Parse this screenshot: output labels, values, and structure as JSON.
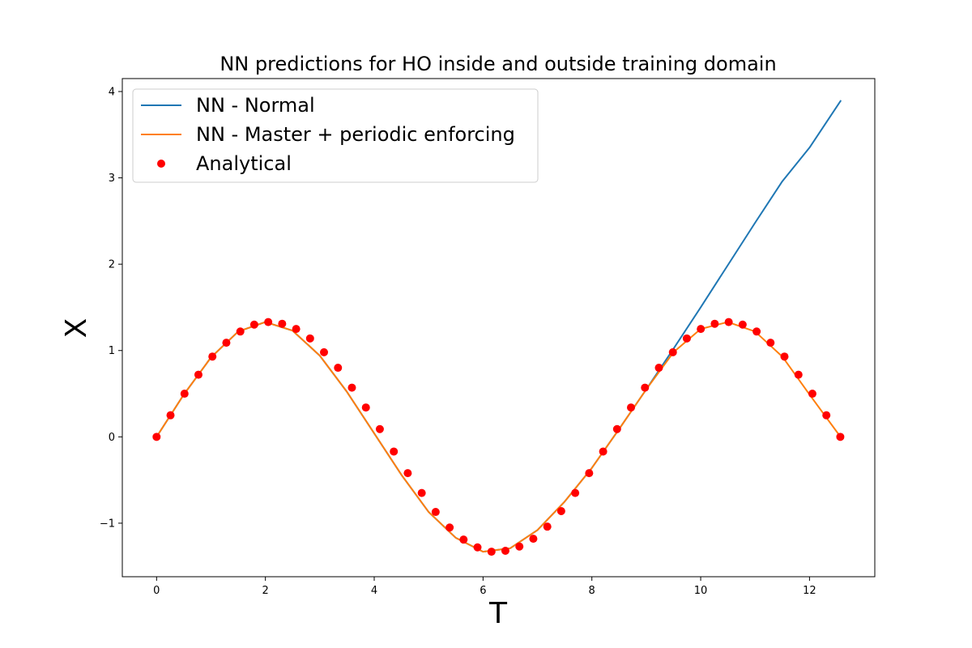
{
  "chart_data": {
    "type": "line",
    "title": "NN predictions for HO inside and outside training domain",
    "xlabel": "T",
    "ylabel": "X",
    "xlim": [
      -0.63,
      13.2
    ],
    "ylim": [
      -1.62,
      4.15
    ],
    "xticks": [
      0,
      2,
      4,
      6,
      8,
      10,
      12
    ],
    "yticks": [
      -1,
      0,
      1,
      2,
      3,
      4
    ],
    "ytick_labels": [
      "−1",
      "0",
      "1",
      "2",
      "3",
      "4"
    ],
    "grid": false,
    "legend_position": "top-left",
    "series": [
      {
        "name": "NN - Normal",
        "style": "line",
        "color": "#1f77b4",
        "x": [
          0,
          0.5,
          1,
          1.5,
          2,
          2.5,
          3,
          3.5,
          4,
          4.5,
          5,
          5.5,
          6,
          6.5,
          7,
          7.5,
          8,
          8.5,
          9,
          9.5,
          10,
          10.5,
          11,
          11.5,
          12,
          12.57
        ],
        "y": [
          0,
          0.49,
          0.92,
          1.22,
          1.33,
          1.23,
          0.94,
          0.52,
          0.04,
          -0.44,
          -0.87,
          -1.17,
          -1.33,
          -1.29,
          -1.08,
          -0.75,
          -0.36,
          0.09,
          0.55,
          1.02,
          1.5,
          1.99,
          2.48,
          2.96,
          3.35,
          3.89
        ]
      },
      {
        "name": "NN - Master + periodic enforcing",
        "style": "line",
        "color": "#ff7f0e",
        "x": [
          0,
          0.5,
          1,
          1.5,
          2,
          2.5,
          3,
          3.5,
          4,
          4.5,
          5,
          5.5,
          6,
          6.5,
          7,
          7.5,
          8,
          8.5,
          9,
          9.5,
          10,
          10.5,
          11,
          11.5,
          12,
          12.57
        ],
        "y": [
          0,
          0.49,
          0.92,
          1.22,
          1.33,
          1.23,
          0.94,
          0.52,
          0.04,
          -0.44,
          -0.87,
          -1.17,
          -1.33,
          -1.29,
          -1.08,
          -0.75,
          -0.36,
          0.09,
          0.55,
          0.98,
          1.25,
          1.33,
          1.22,
          0.93,
          0.49,
          0
        ]
      },
      {
        "name": "Analytical",
        "style": "scatter",
        "color": "#ff0000",
        "x": [
          0,
          0.256,
          0.513,
          0.769,
          1.026,
          1.282,
          1.539,
          1.795,
          2.052,
          2.308,
          2.565,
          2.821,
          3.077,
          3.334,
          3.59,
          3.847,
          4.103,
          4.36,
          4.616,
          4.873,
          5.129,
          5.386,
          5.642,
          5.898,
          6.155,
          6.411,
          6.668,
          6.924,
          7.181,
          7.437,
          7.694,
          7.95,
          8.207,
          8.463,
          8.719,
          8.976,
          9.232,
          9.489,
          9.745,
          10.002,
          10.258,
          10.515,
          10.771,
          11.028,
          11.284,
          11.54,
          11.797,
          12.053,
          12.31,
          12.566
        ],
        "y": [
          0,
          0.25,
          0.5,
          0.72,
          0.93,
          1.09,
          1.22,
          1.3,
          1.33,
          1.31,
          1.25,
          1.14,
          0.98,
          0.8,
          0.57,
          0.34,
          0.09,
          -0.17,
          -0.42,
          -0.65,
          -0.87,
          -1.05,
          -1.19,
          -1.28,
          -1.33,
          -1.32,
          -1.27,
          -1.18,
          -1.04,
          -0.86,
          -0.65,
          -0.42,
          -0.17,
          0.09,
          0.34,
          0.57,
          0.8,
          0.98,
          1.14,
          1.25,
          1.31,
          1.33,
          1.3,
          1.22,
          1.09,
          0.93,
          0.72,
          0.5,
          0.25,
          0
        ]
      }
    ]
  }
}
